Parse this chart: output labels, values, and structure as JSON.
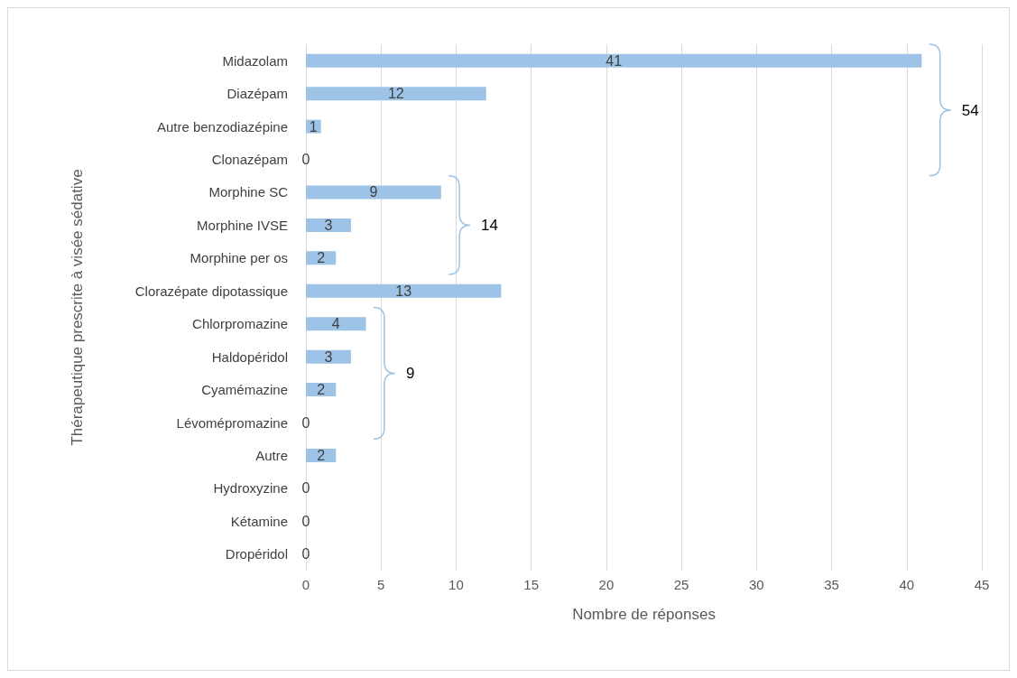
{
  "chart_data": {
    "type": "bar",
    "orientation": "horizontal",
    "xlabel": "Nombre de réponses",
    "ylabel": "Thérapeutique prescrite à visée sédative",
    "categories": [
      "Midazolam",
      "Diazépam",
      "Autre benzodiazépine",
      "Clonazépam",
      "Morphine SC",
      "Morphine IVSE",
      "Morphine per os",
      "Clorazépate dipotassique",
      "Chlorpromazine",
      "Haldopéridol",
      "Cyamémazine",
      "Lévomépromazine",
      "Autre",
      "Hydroxyzine",
      "Kétamine",
      "Dropéridol"
    ],
    "values": [
      41,
      12,
      1,
      0,
      9,
      3,
      2,
      13,
      4,
      3,
      2,
      0,
      2,
      0,
      0,
      0
    ],
    "color": "#9dc3e6",
    "data_labels": true,
    "grid": "x",
    "xlim": [
      0,
      45
    ],
    "xticks": [
      0,
      5,
      10,
      15,
      20,
      25,
      30,
      35,
      40,
      45
    ],
    "annotations": [
      "54",
      "14",
      "9"
    ]
  }
}
